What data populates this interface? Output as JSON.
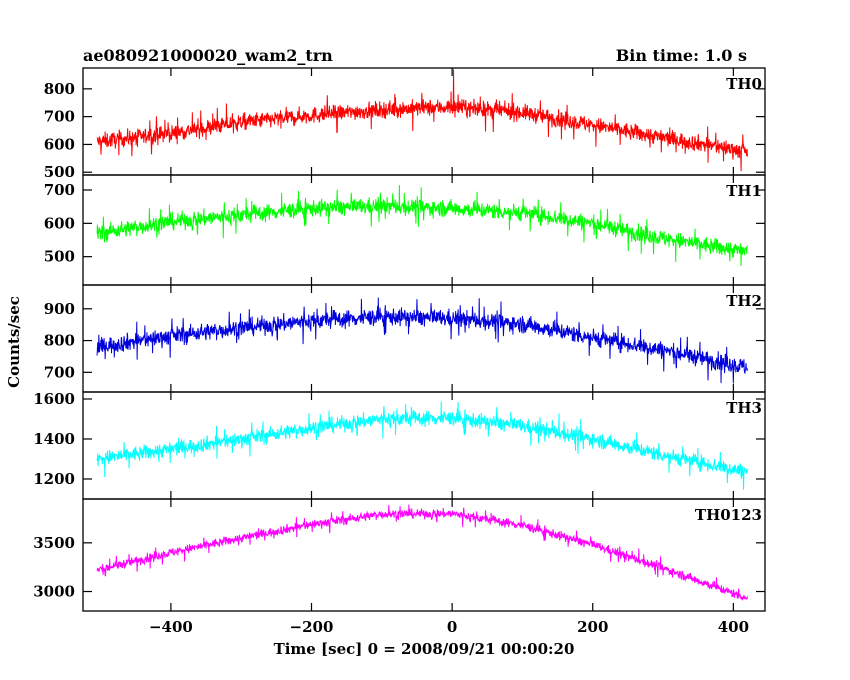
{
  "header": {
    "left": "ae080921000020_wam2_trn",
    "right": "Bin time: 1.0 s"
  },
  "chart_data": {
    "type": "line",
    "title": "ae080921000020_wam2_trn",
    "subtitle": "Bin time: 1.0 s",
    "xlabel": "Time [sec] 0 = 2008/09/21 00:00:20",
    "ylabel": "Counts/sec",
    "xlim": [
      -525,
      445
    ],
    "x_ticks": [
      -400,
      -200,
      0,
      200,
      400
    ],
    "x_tick_labels": [
      "−400",
      "−200",
      "0",
      "200",
      "400"
    ],
    "x_range_data": [
      -505,
      420
    ],
    "grid": false,
    "legend": "none",
    "panels": [
      {
        "name": "TH0",
        "color": "#ff0000",
        "ylim": [
          490,
          875
        ],
        "y_ticks": [
          500,
          600,
          700,
          800
        ],
        "y_tick_labels": [
          "500",
          "600",
          "700",
          "800"
        ],
        "trend": [
          [
            -505,
            610
          ],
          [
            -400,
            640
          ],
          [
            -300,
            680
          ],
          [
            -200,
            705
          ],
          [
            -100,
            725
          ],
          [
            0,
            735
          ],
          [
            100,
            715
          ],
          [
            200,
            670
          ],
          [
            300,
            625
          ],
          [
            420,
            575
          ]
        ],
        "noise": 38,
        "peak": {
          "x": 2,
          "y": 870
        }
      },
      {
        "name": "TH1",
        "color": "#00ff00",
        "ylim": [
          415,
          745
        ],
        "y_ticks": [
          500,
          600,
          700
        ],
        "y_tick_labels": [
          "500",
          "600",
          "700"
        ],
        "trend": [
          [
            -505,
            570
          ],
          [
            -400,
            605
          ],
          [
            -300,
            625
          ],
          [
            -200,
            645
          ],
          [
            -100,
            652
          ],
          [
            0,
            645
          ],
          [
            100,
            632
          ],
          [
            200,
            600
          ],
          [
            300,
            555
          ],
          [
            420,
            515
          ]
        ],
        "noise": 32,
        "peak": null
      },
      {
        "name": "TH2",
        "color": "#0000dd",
        "ylim": [
          638,
          975
        ],
        "y_ticks": [
          700,
          800,
          900
        ],
        "y_tick_labels": [
          "700",
          "800",
          "900"
        ],
        "trend": [
          [
            -505,
            780
          ],
          [
            -400,
            815
          ],
          [
            -300,
            840
          ],
          [
            -200,
            862
          ],
          [
            -100,
            875
          ],
          [
            0,
            870
          ],
          [
            100,
            852
          ],
          [
            200,
            810
          ],
          [
            300,
            770
          ],
          [
            420,
            715
          ]
        ],
        "noise": 35,
        "peak": null
      },
      {
        "name": "TH3",
        "color": "#00ffff",
        "ylim": [
          1100,
          1635
        ],
        "y_ticks": [
          1200,
          1400,
          1600
        ],
        "y_tick_labels": [
          "1200",
          "1400",
          "1600"
        ],
        "trend": [
          [
            -505,
            1300
          ],
          [
            -400,
            1350
          ],
          [
            -300,
            1400
          ],
          [
            -200,
            1455
          ],
          [
            -100,
            1500
          ],
          [
            0,
            1505
          ],
          [
            100,
            1465
          ],
          [
            200,
            1400
          ],
          [
            300,
            1320
          ],
          [
            420,
            1235
          ]
        ],
        "noise": 48,
        "peak": null
      },
      {
        "name": "TH0123",
        "color": "#ff00ff",
        "ylim": [
          2800,
          3950
        ],
        "y_ticks": [
          3000,
          3500
        ],
        "y_tick_labels": [
          "3000",
          "3500"
        ],
        "trend": [
          [
            -505,
            3220
          ],
          [
            -400,
            3400
          ],
          [
            -300,
            3550
          ],
          [
            -200,
            3690
          ],
          [
            -100,
            3795
          ],
          [
            0,
            3800
          ],
          [
            100,
            3680
          ],
          [
            200,
            3480
          ],
          [
            300,
            3240
          ],
          [
            420,
            2930
          ]
        ],
        "noise": 60,
        "peak": null
      }
    ]
  }
}
